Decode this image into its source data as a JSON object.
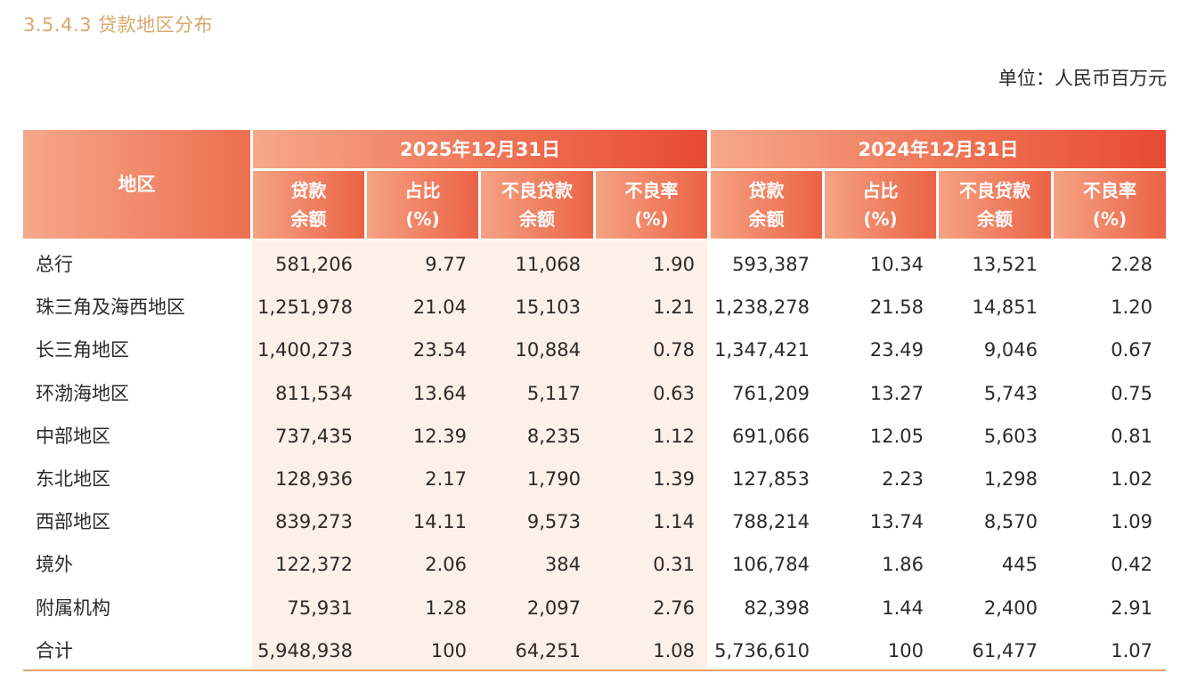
{
  "section_title": "3.5.4.3 贷款地区分布",
  "unit": "单位：人民币百万元",
  "headers": {
    "region": "地区",
    "year_2025": "2025年12月31日",
    "year_2024": "2024年12月31日",
    "sub": [
      {
        "l1": "贷款",
        "l2": "余额"
      },
      {
        "l1": "占比",
        "l2": "(%)"
      },
      {
        "l1": "不良贷款",
        "l2": "余额"
      },
      {
        "l1": "不良率",
        "l2": "(%)"
      },
      {
        "l1": "贷款",
        "l2": "余额"
      },
      {
        "l1": "占比",
        "l2": "(%)"
      },
      {
        "l1": "不良贷款",
        "l2": "余额"
      },
      {
        "l1": "不良率",
        "l2": "(%)"
      }
    ]
  },
  "rows": [
    {
      "region": "总行",
      "v": [
        "581,206",
        "9.77",
        "11,068",
        "1.90",
        "593,387",
        "10.34",
        "13,521",
        "2.28"
      ]
    },
    {
      "region": "珠三角及海西地区",
      "v": [
        "1,251,978",
        "21.04",
        "15,103",
        "1.21",
        "1,238,278",
        "21.58",
        "14,851",
        "1.20"
      ]
    },
    {
      "region": "长三角地区",
      "v": [
        "1,400,273",
        "23.54",
        "10,884",
        "0.78",
        "1,347,421",
        "23.49",
        "9,046",
        "0.67"
      ]
    },
    {
      "region": "环渤海地区",
      "v": [
        "811,534",
        "13.64",
        "5,117",
        "0.63",
        "761,209",
        "13.27",
        "5,743",
        "0.75"
      ]
    },
    {
      "region": "中部地区",
      "v": [
        "737,435",
        "12.39",
        "8,235",
        "1.12",
        "691,066",
        "12.05",
        "5,603",
        "0.81"
      ]
    },
    {
      "region": "东北地区",
      "v": [
        "128,936",
        "2.17",
        "1,790",
        "1.39",
        "127,853",
        "2.23",
        "1,298",
        "1.02"
      ]
    },
    {
      "region": "西部地区",
      "v": [
        "839,273",
        "14.11",
        "9,573",
        "1.14",
        "788,214",
        "13.74",
        "8,570",
        "1.09"
      ]
    },
    {
      "region": "境外",
      "v": [
        "122,372",
        "2.06",
        "384",
        "0.31",
        "106,784",
        "1.86",
        "445",
        "0.42"
      ]
    },
    {
      "region": "附属机构",
      "v": [
        "75,931",
        "1.28",
        "2,097",
        "2.76",
        "82,398",
        "1.44",
        "2,400",
        "2.91"
      ]
    },
    {
      "region": "合计",
      "v": [
        "5,948,938",
        "100",
        "64,251",
        "1.08",
        "5,736,610",
        "100",
        "61,477",
        "1.07"
      ]
    }
  ]
}
